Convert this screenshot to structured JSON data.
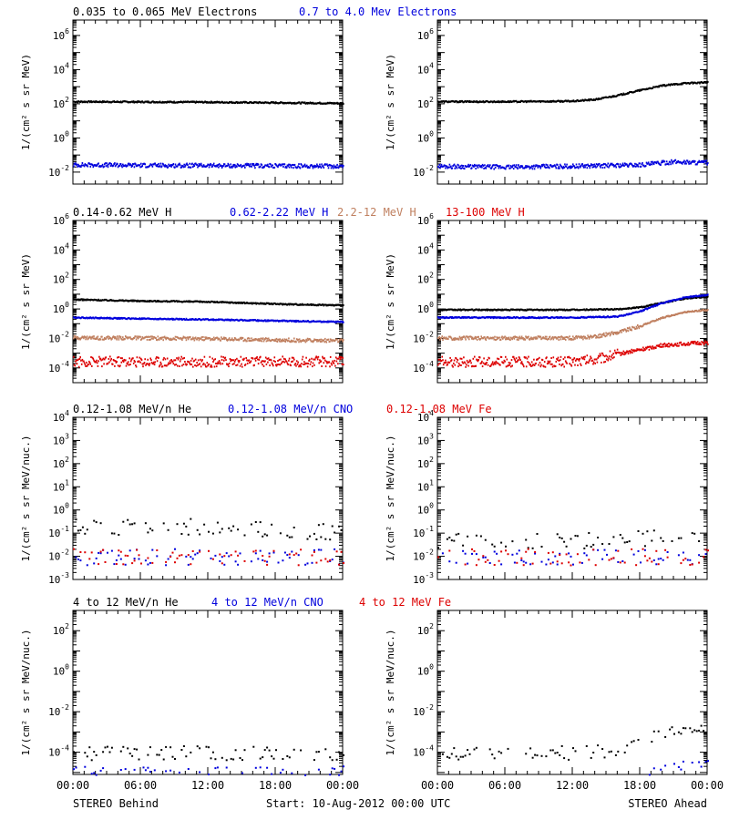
{
  "colors": {
    "black": "#000000",
    "blue": "#0000dd",
    "tan": "#c08060",
    "red": "#dd0000"
  },
  "footer": {
    "left": "STEREO Behind",
    "center": "Start: 10-Aug-2012 00:00 UTC",
    "right": "STEREO Ahead"
  },
  "chart_data": [
    {
      "type": "scatter",
      "panel": "row1-left",
      "ylabel": "1/(cm² s sr MeV)",
      "yscale": "log",
      "ylim": [
        0.002,
        8000000
      ],
      "y_tick_exponents": [
        -2,
        0,
        2,
        4,
        6
      ],
      "x_tick_labels": [],
      "xlim_hours": [
        0,
        24
      ],
      "series": [
        {
          "name": "0.035 to 0.065 MeV Electrons",
          "color": "#000000",
          "hours": [
            0,
            6,
            12,
            18,
            24
          ],
          "values": [
            150,
            145,
            140,
            130,
            120
          ]
        },
        {
          "name": "0.7 to 4.0 Mev Electrons",
          "color": "#0000dd",
          "hours": [
            0,
            6,
            12,
            18,
            24
          ],
          "values": [
            0.03,
            0.028,
            0.027,
            0.026,
            0.025
          ]
        }
      ]
    },
    {
      "type": "scatter",
      "panel": "row1-right",
      "ylabel": "1/(cm² s sr MeV)",
      "yscale": "log",
      "ylim": [
        0.002,
        8000000
      ],
      "y_tick_exponents": [
        -2,
        0,
        2,
        4,
        6
      ],
      "x_tick_labels": [],
      "xlim_hours": [
        0,
        24
      ],
      "series": [
        {
          "name": "0.035 to 0.065 MeV Electrons",
          "color": "#000000",
          "hours": [
            0,
            6,
            12,
            14,
            16,
            18,
            20,
            22,
            24
          ],
          "values": [
            150,
            150,
            160,
            200,
            350,
            700,
            1300,
            1800,
            2000
          ]
        },
        {
          "name": "0.7 to 4.0 Mev Electrons",
          "color": "#0000dd",
          "hours": [
            0,
            6,
            12,
            18,
            21,
            24
          ],
          "values": [
            0.025,
            0.022,
            0.025,
            0.03,
            0.045,
            0.04
          ]
        }
      ]
    },
    {
      "type": "scatter",
      "panel": "row2-left",
      "ylabel": "1/(cm² s sr MeV)",
      "yscale": "log",
      "ylim": [
        1e-05,
        1000000
      ],
      "y_tick_exponents": [
        -4,
        -2,
        0,
        2,
        4,
        6
      ],
      "x_tick_labels": [],
      "xlim_hours": [
        0,
        24
      ],
      "series": [
        {
          "name": "0.14-0.62 MeV H",
          "color": "#000000",
          "hours": [
            0,
            6,
            12,
            18,
            24
          ],
          "values": [
            5,
            4,
            3.5,
            2.5,
            2
          ]
        },
        {
          "name": "0.62-2.22 MeV H",
          "color": "#0000dd",
          "hours": [
            0,
            6,
            12,
            18,
            24
          ],
          "values": [
            0.3,
            0.25,
            0.22,
            0.18,
            0.15
          ]
        },
        {
          "name": "2.2-12 MeV H",
          "color": "#c08060",
          "hours": [
            0,
            6,
            12,
            18,
            24
          ],
          "values": [
            0.013,
            0.012,
            0.011,
            0.009,
            0.008
          ]
        },
        {
          "name": "13-100 MeV H",
          "color": "#dd0000",
          "hours": [
            0,
            6,
            12,
            18,
            24
          ],
          "values": [
            0.0003,
            0.0003,
            0.0003,
            0.0003,
            0.0003
          ]
        }
      ]
    },
    {
      "type": "scatter",
      "panel": "row2-right",
      "ylabel": "1/(cm² s sr MeV)",
      "yscale": "log",
      "ylim": [
        1e-05,
        1000000
      ],
      "y_tick_exponents": [
        -4,
        -2,
        0,
        2,
        4,
        6
      ],
      "x_tick_labels": [],
      "xlim_hours": [
        0,
        24
      ],
      "series": [
        {
          "name": "0.14-0.62 MeV H",
          "color": "#000000",
          "hours": [
            0,
            6,
            12,
            16,
            18,
            20,
            22,
            24
          ],
          "values": [
            1,
            1,
            1,
            1.1,
            1.5,
            3,
            6,
            8
          ]
        },
        {
          "name": "0.62-2.22 MeV H",
          "color": "#0000dd",
          "hours": [
            0,
            6,
            12,
            16,
            18,
            20,
            22,
            24
          ],
          "values": [
            0.3,
            0.3,
            0.3,
            0.35,
            0.8,
            3,
            7,
            10
          ]
        },
        {
          "name": "2.2-12 MeV H",
          "color": "#c08060",
          "hours": [
            0,
            6,
            12,
            14,
            16,
            18,
            20,
            22,
            24
          ],
          "values": [
            0.012,
            0.012,
            0.012,
            0.015,
            0.03,
            0.08,
            0.3,
            0.7,
            1
          ]
        },
        {
          "name": "13-100 MeV H",
          "color": "#dd0000",
          "hours": [
            0,
            6,
            12,
            14,
            16,
            18,
            20,
            22,
            24
          ],
          "values": [
            0.0003,
            0.0003,
            0.0003,
            0.0004,
            0.001,
            0.002,
            0.004,
            0.005,
            0.006
          ]
        }
      ]
    },
    {
      "type": "scatter",
      "panel": "row3-left",
      "ylabel": "1/(cm² s sr MeV/nuc.)",
      "yscale": "log",
      "ylim": [
        0.001,
        10000
      ],
      "y_tick_exponents": [
        -3,
        -2,
        -1,
        0,
        1,
        2,
        3,
        4
      ],
      "x_tick_labels": [],
      "xlim_hours": [
        0,
        24
      ],
      "series": [
        {
          "name": "0.12-1.08 MeV/n He",
          "color": "#000000",
          "hours": [
            0,
            6,
            12,
            18,
            24
          ],
          "values": [
            0.2,
            0.2,
            0.2,
            0.15,
            0.12
          ]
        },
        {
          "name": "0.12-1.08 MeV/n CNO",
          "color": "#0000dd",
          "hours": [
            0,
            6,
            12,
            18,
            24
          ],
          "values": [
            0.01,
            0.01,
            0.01,
            0.01,
            0.01
          ]
        },
        {
          "name": "0.12-1.08 MeV Fe",
          "color": "#dd0000",
          "hours": [
            0,
            6,
            12,
            18,
            24
          ],
          "values": [
            0.01,
            0.01,
            0.01,
            0.01,
            0.01
          ]
        }
      ]
    },
    {
      "type": "scatter",
      "panel": "row3-right",
      "ylabel": "1/(cm² s sr MeV/nuc.)",
      "yscale": "log",
      "ylim": [
        0.001,
        10000
      ],
      "y_tick_exponents": [
        -3,
        -2,
        -1,
        0,
        1,
        2,
        3,
        4
      ],
      "x_tick_labels": [],
      "xlim_hours": [
        0,
        24
      ],
      "series": [
        {
          "name": "0.12-1.08 MeV/n He",
          "color": "#000000",
          "hours": [
            0,
            6,
            12,
            18,
            24
          ],
          "values": [
            0.05,
            0.05,
            0.05,
            0.06,
            0.1
          ]
        },
        {
          "name": "0.12-1.08 MeV/n CNO",
          "color": "#0000dd",
          "hours": [
            0,
            6,
            12,
            18,
            24
          ],
          "values": [
            0.01,
            0.01,
            0.01,
            0.01,
            0.01
          ]
        },
        {
          "name": "0.12-1.08 MeV Fe",
          "color": "#dd0000",
          "hours": [
            0,
            6,
            12,
            18,
            24
          ],
          "values": [
            0.01,
            0.01,
            0.01,
            0.01,
            0.01
          ]
        }
      ]
    },
    {
      "type": "scatter",
      "panel": "row4-left",
      "ylabel": "1/(cm² s sr MeV/nuc.)",
      "yscale": "log",
      "ylim": [
        8e-06,
        1000
      ],
      "y_tick_exponents": [
        -4,
        -2,
        0,
        2
      ],
      "x_tick_labels": [
        "00:00",
        "06:00",
        "12:00",
        "18:00",
        "00:00"
      ],
      "xlim_hours": [
        0,
        24
      ],
      "series": [
        {
          "name": "4 to 12 MeV/n He",
          "color": "#000000",
          "hours": [
            0,
            6,
            12,
            18,
            24
          ],
          "values": [
            0.0001,
            0.0001,
            0.0001,
            0.0001,
            0.0001
          ]
        },
        {
          "name": "4 to 12 MeV/n CNO",
          "color": "#0000dd",
          "hours": [
            0,
            24
          ],
          "values": [
            1e-05,
            1e-05
          ]
        },
        {
          "name": "4 to 12 MeV Fe",
          "color": "#dd0000",
          "hours": [],
          "values": []
        }
      ]
    },
    {
      "type": "scatter",
      "panel": "row4-right",
      "ylabel": "1/(cm² s sr MeV/nuc.)",
      "yscale": "log",
      "ylim": [
        8e-06,
        1000
      ],
      "y_tick_exponents": [
        -4,
        -2,
        0,
        2
      ],
      "x_tick_labels": [
        "00:00",
        "06:00",
        "12:00",
        "18:00",
        "00:00"
      ],
      "xlim_hours": [
        0,
        24
      ],
      "series": [
        {
          "name": "4 to 12 MeV/n He",
          "color": "#000000",
          "hours": [
            0,
            6,
            12,
            16,
            18,
            20,
            22,
            24
          ],
          "values": [
            0.0001,
            0.0001,
            0.0001,
            0.00015,
            0.0004,
            0.001,
            0.002,
            0.003
          ]
        },
        {
          "name": "4 to 12 MeV/n CNO",
          "color": "#0000dd",
          "hours": [
            18,
            20,
            22,
            24
          ],
          "values": [
            1e-05,
            2e-05,
            3e-05,
            5e-05
          ]
        },
        {
          "name": "4 to 12 MeV Fe",
          "color": "#dd0000",
          "hours": [],
          "values": []
        }
      ]
    }
  ]
}
